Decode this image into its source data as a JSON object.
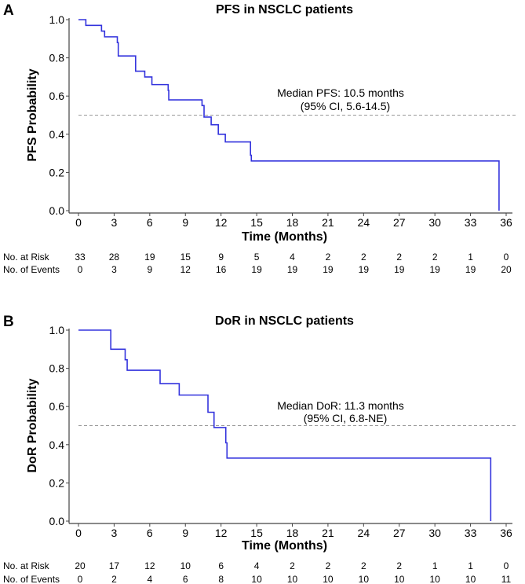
{
  "chart_data": [
    {
      "type": "line",
      "panel_label": "A",
      "title": "PFS in NSCLC patients",
      "xlabel": "Time (Months)",
      "ylabel": "PFS Probability",
      "xlim": [
        0,
        36
      ],
      "ylim": [
        0,
        1
      ],
      "xticks": [
        0,
        3,
        6,
        9,
        12,
        15,
        18,
        21,
        24,
        27,
        30,
        33,
        36
      ],
      "yticks": [
        "0.0",
        "0.2",
        "0.4",
        "0.6",
        "0.8",
        "1.0"
      ],
      "color": "#3333dd",
      "median_line": 0.5,
      "annotation": [
        "Median PFS: 10.5 months",
        "(95% CI, 5.6-14.5)"
      ],
      "steps": [
        [
          0,
          1.0
        ],
        [
          0.62,
          0.97
        ],
        [
          1.94,
          0.94
        ],
        [
          2.2,
          0.91
        ],
        [
          3.27,
          0.88
        ],
        [
          3.35,
          0.81
        ],
        [
          4.81,
          0.73
        ],
        [
          5.58,
          0.7
        ],
        [
          6.18,
          0.66
        ],
        [
          7.55,
          0.63
        ],
        [
          7.6,
          0.58
        ],
        [
          10.4,
          0.55
        ],
        [
          10.57,
          0.49
        ],
        [
          11.17,
          0.45
        ],
        [
          11.77,
          0.4
        ],
        [
          12.36,
          0.36
        ],
        [
          14.48,
          0.29
        ],
        [
          14.55,
          0.26
        ],
        [
          35.4,
          0.0
        ]
      ],
      "risk_table": {
        "rows": [
          {
            "label": "No. at Risk",
            "values": [
              "33",
              "28",
              "19",
              "15",
              "9",
              "5",
              "4",
              "2",
              "2",
              "2",
              "2",
              "1",
              "0"
            ]
          },
          {
            "label": "No. of Events",
            "values": [
              "0",
              "3",
              "9",
              "12",
              "16",
              "19",
              "19",
              "19",
              "19",
              "19",
              "19",
              "19",
              "20"
            ]
          }
        ]
      }
    },
    {
      "type": "line",
      "panel_label": "B",
      "title": "DoR in NSCLC patients",
      "xlabel": "Time (Months)",
      "ylabel": "DoR Probability",
      "xlim": [
        0,
        36
      ],
      "ylim": [
        0,
        1
      ],
      "xticks": [
        0,
        3,
        6,
        9,
        12,
        15,
        18,
        21,
        24,
        27,
        30,
        33,
        36
      ],
      "yticks": [
        "0.0",
        "0.2",
        "0.4",
        "0.6",
        "0.8",
        "1.0"
      ],
      "color": "#3333dd",
      "median_line": 0.5,
      "annotation": [
        "Median DoR: 11.3 months",
        "(95% CI, 6.8-NE)"
      ],
      "steps": [
        [
          0,
          1.0
        ],
        [
          2.72,
          0.9
        ],
        [
          3.93,
          0.845
        ],
        [
          4.1,
          0.79
        ],
        [
          6.87,
          0.72
        ],
        [
          8.48,
          0.66
        ],
        [
          10.9,
          0.57
        ],
        [
          11.41,
          0.49
        ],
        [
          12.4,
          0.41
        ],
        [
          12.5,
          0.33
        ],
        [
          34.7,
          0.0
        ]
      ],
      "risk_table": {
        "rows": [
          {
            "label": "No. at Risk",
            "values": [
              "20",
              "17",
              "12",
              "10",
              "6",
              "4",
              "2",
              "2",
              "2",
              "2",
              "1",
              "1",
              "0"
            ]
          },
          {
            "label": "No. of Events",
            "values": [
              "0",
              "2",
              "4",
              "6",
              "8",
              "10",
              "10",
              "10",
              "10",
              "10",
              "10",
              "10",
              "11"
            ]
          }
        ]
      }
    }
  ]
}
